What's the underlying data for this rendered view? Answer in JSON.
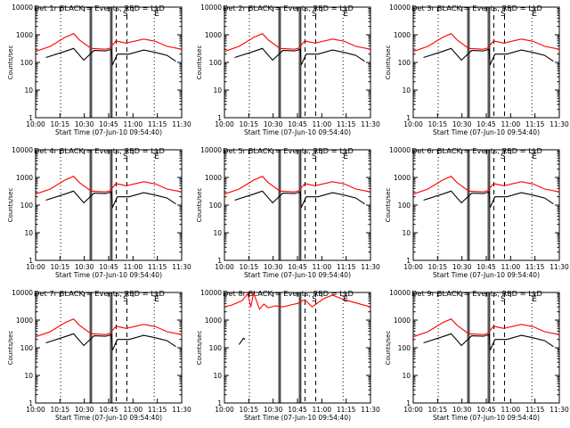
{
  "colors": {
    "events": "#000000",
    "lld": "#ff0000",
    "axis": "#000000",
    "background": "#ffffff"
  },
  "x_tick_labels": [
    "10:00",
    "10:15",
    "10:30",
    "10:45",
    "11:00",
    "11:15",
    "11:30"
  ],
  "y_tick_labels": [
    "1",
    "10",
    "100",
    "1000",
    "10000"
  ],
  "chart_data": [
    {
      "type": "line",
      "title": "Det 1r BLACK = Events, RED = LLD",
      "xlabel": "Start Time (07-Jun-10 09:54:40)",
      "ylabel": "Counts/sec",
      "yscale": "log",
      "xlim": [
        0,
        100
      ],
      "ylim": [
        1,
        10000
      ],
      "marker_letters": [
        "S",
        "E"
      ],
      "series": [
        {
          "name": "LLD",
          "color": "red",
          "x": [
            0,
            10,
            20,
            26,
            30,
            38,
            48,
            51,
            55,
            62,
            74,
            82,
            90,
            100
          ],
          "y": [
            250,
            380,
            800,
            1100,
            650,
            320,
            300,
            330,
            600,
            500,
            700,
            580,
            380,
            300
          ]
        },
        {
          "name": "Events",
          "color": "black",
          "x": [
            7,
            20,
            26,
            33,
            40,
            48,
            52,
            52.5,
            56,
            64,
            74,
            82,
            90,
            96
          ],
          "y": [
            150,
            250,
            320,
            120,
            270,
            260,
            300,
            80,
            200,
            200,
            280,
            230,
            180,
            110
          ]
        }
      ]
    },
    {
      "type": "line",
      "title": "Det 2r BLACK = Events, RED = LLD",
      "xlabel": "Start Time (07-Jun-10 09:54:40)",
      "ylabel": "Counts/sec",
      "yscale": "log",
      "xlim": [
        0,
        100
      ],
      "ylim": [
        1,
        10000
      ],
      "marker_letters": [
        "S",
        "E"
      ],
      "series": [
        {
          "name": "LLD",
          "color": "red",
          "x": [
            0,
            10,
            20,
            26,
            30,
            38,
            48,
            51,
            55,
            62,
            74,
            82,
            90,
            100
          ],
          "y": [
            250,
            380,
            800,
            1100,
            650,
            320,
            300,
            330,
            600,
            500,
            700,
            580,
            380,
            300
          ]
        },
        {
          "name": "Events",
          "color": "black",
          "x": [
            7,
            20,
            26,
            33,
            40,
            48,
            52,
            52.5,
            56,
            64,
            74,
            82,
            90,
            96
          ],
          "y": [
            150,
            250,
            320,
            120,
            270,
            260,
            300,
            80,
            200,
            200,
            280,
            230,
            180,
            110
          ]
        }
      ]
    },
    {
      "type": "line",
      "title": "Det 3r BLACK = Events, RED = LLD",
      "xlabel": "Start Time (07-Jun-10 09:54:40)",
      "ylabel": "Counts/sec",
      "yscale": "log",
      "xlim": [
        0,
        100
      ],
      "ylim": [
        1,
        10000
      ],
      "marker_letters": [
        "S",
        "E"
      ],
      "series": [
        {
          "name": "LLD",
          "color": "red",
          "x": [
            0,
            10,
            20,
            26,
            30,
            38,
            48,
            51,
            55,
            62,
            74,
            82,
            90,
            100
          ],
          "y": [
            250,
            380,
            800,
            1100,
            650,
            320,
            300,
            330,
            600,
            500,
            700,
            580,
            380,
            300
          ]
        },
        {
          "name": "Events",
          "color": "black",
          "x": [
            7,
            20,
            26,
            33,
            40,
            48,
            52,
            52.5,
            56,
            64,
            74,
            82,
            90,
            96
          ],
          "y": [
            150,
            250,
            320,
            120,
            270,
            260,
            300,
            80,
            200,
            200,
            280,
            230,
            180,
            110
          ]
        }
      ]
    },
    {
      "type": "line",
      "title": "Det 4r BLACK = Events, RED = LLD",
      "xlabel": "Start Time (07-Jun-10 09:54:40)",
      "ylabel": "Counts/sec",
      "yscale": "log",
      "xlim": [
        0,
        100
      ],
      "ylim": [
        1,
        10000
      ],
      "marker_letters": [
        "S",
        "E"
      ],
      "series": [
        {
          "name": "LLD",
          "color": "red",
          "x": [
            0,
            10,
            20,
            26,
            30,
            38,
            48,
            51,
            55,
            62,
            74,
            82,
            90,
            100
          ],
          "y": [
            250,
            380,
            800,
            1100,
            650,
            320,
            300,
            330,
            600,
            500,
            700,
            580,
            380,
            300
          ]
        },
        {
          "name": "Events",
          "color": "black",
          "x": [
            7,
            20,
            26,
            33,
            40,
            48,
            52,
            52.5,
            56,
            64,
            74,
            82,
            90,
            96
          ],
          "y": [
            150,
            250,
            320,
            120,
            270,
            260,
            300,
            80,
            200,
            200,
            280,
            230,
            180,
            110
          ]
        }
      ]
    },
    {
      "type": "line",
      "title": "Det 5r BLACK = Events, RED = LLD",
      "xlabel": "Start Time (07-Jun-10 09:54:40)",
      "ylabel": "Counts/sec",
      "yscale": "log",
      "xlim": [
        0,
        100
      ],
      "ylim": [
        1,
        10000
      ],
      "marker_letters": [
        "S",
        "E"
      ],
      "series": [
        {
          "name": "LLD",
          "color": "red",
          "x": [
            0,
            10,
            20,
            26,
            30,
            38,
            48,
            51,
            55,
            62,
            74,
            82,
            90,
            100
          ],
          "y": [
            250,
            380,
            800,
            1100,
            650,
            320,
            300,
            330,
            600,
            500,
            700,
            580,
            380,
            300
          ]
        },
        {
          "name": "Events",
          "color": "black",
          "x": [
            7,
            20,
            26,
            33,
            40,
            48,
            52,
            52.5,
            56,
            64,
            74,
            82,
            90,
            96
          ],
          "y": [
            150,
            250,
            320,
            120,
            270,
            260,
            300,
            80,
            200,
            200,
            280,
            230,
            180,
            110
          ]
        }
      ]
    },
    {
      "type": "line",
      "title": "Det 6r BLACK = Events, RED = LLD",
      "xlabel": "Start Time (07-Jun-10 09:54:40)",
      "ylabel": "Counts/sec",
      "yscale": "log",
      "xlim": [
        0,
        100
      ],
      "ylim": [
        1,
        10000
      ],
      "marker_letters": [
        "S",
        "E"
      ],
      "series": [
        {
          "name": "LLD",
          "color": "red",
          "x": [
            0,
            10,
            20,
            26,
            30,
            38,
            48,
            51,
            55,
            62,
            74,
            82,
            90,
            100
          ],
          "y": [
            250,
            380,
            800,
            1100,
            650,
            320,
            300,
            330,
            600,
            500,
            700,
            580,
            380,
            300
          ]
        },
        {
          "name": "Events",
          "color": "black",
          "x": [
            7,
            20,
            26,
            33,
            40,
            48,
            52,
            52.5,
            56,
            64,
            74,
            82,
            90,
            96
          ],
          "y": [
            150,
            250,
            320,
            120,
            270,
            260,
            300,
            80,
            200,
            200,
            280,
            230,
            180,
            110
          ]
        }
      ]
    },
    {
      "type": "line",
      "title": "Det 7r BLACK = Events, RED = LLD",
      "xlabel": "Start Time (07-Jun-10 09:54:40)",
      "ylabel": "Counts/sec",
      "yscale": "log",
      "xlim": [
        0,
        100
      ],
      "ylim": [
        1,
        10000
      ],
      "marker_letters": [
        "S",
        "E"
      ],
      "series": [
        {
          "name": "LLD",
          "color": "red",
          "x": [
            0,
            10,
            20,
            26,
            30,
            38,
            48,
            51,
            55,
            62,
            74,
            82,
            90,
            100
          ],
          "y": [
            250,
            380,
            800,
            1100,
            650,
            320,
            300,
            330,
            600,
            500,
            700,
            580,
            380,
            300
          ]
        },
        {
          "name": "Events",
          "color": "black",
          "x": [
            7,
            20,
            26,
            33,
            40,
            48,
            52,
            52.5,
            56,
            64,
            74,
            82,
            90,
            96
          ],
          "y": [
            150,
            250,
            320,
            120,
            270,
            260,
            300,
            80,
            200,
            200,
            280,
            230,
            180,
            110
          ]
        }
      ]
    },
    {
      "type": "line",
      "title": "Det 8r BLACK = Events, RED = LLD",
      "xlabel": "Start Time (07-Jun-10 09:54:40)",
      "ylabel": "Counts/sec",
      "yscale": "log",
      "xlim": [
        0,
        100
      ],
      "ylim": [
        1,
        10000
      ],
      "marker_letters": [
        "S",
        "E"
      ],
      "series": [
        {
          "name": "LLD",
          "color": "red",
          "x": [
            0,
            5,
            12,
            16,
            18,
            20,
            24,
            27,
            30,
            35,
            40,
            45,
            50,
            55,
            60,
            68,
            74,
            80,
            88,
            100
          ],
          "y": [
            3000,
            3500,
            5000,
            9000,
            3000,
            9500,
            2500,
            3800,
            2800,
            3300,
            3000,
            3500,
            4000,
            5500,
            3000,
            6000,
            8000,
            6000,
            4500,
            3000
          ]
        },
        {
          "name": "Events",
          "color": "black",
          "x": [
            10,
            13,
            14
          ],
          "y": [
            130,
            220,
            200
          ]
        }
      ]
    },
    {
      "type": "line",
      "title": "Det 9r BLACK = Events, RED = LLD",
      "xlabel": "Start Time (07-Jun-10 09:54:40)",
      "ylabel": "Counts/sec",
      "yscale": "log",
      "xlim": [
        0,
        100
      ],
      "ylim": [
        1,
        10000
      ],
      "marker_letters": [
        "S",
        "E"
      ],
      "series": [
        {
          "name": "LLD",
          "color": "red",
          "x": [
            0,
            10,
            20,
            26,
            30,
            38,
            48,
            51,
            55,
            62,
            74,
            82,
            90,
            100
          ],
          "y": [
            250,
            380,
            800,
            1100,
            650,
            320,
            300,
            330,
            600,
            500,
            700,
            580,
            380,
            300
          ]
        },
        {
          "name": "Events",
          "color": "black",
          "x": [
            7,
            20,
            26,
            33,
            40,
            48,
            52,
            52.5,
            56,
            64,
            74,
            82,
            90,
            96
          ],
          "y": [
            150,
            250,
            320,
            120,
            270,
            260,
            300,
            80,
            200,
            200,
            280,
            230,
            180,
            110
          ]
        }
      ]
    }
  ]
}
